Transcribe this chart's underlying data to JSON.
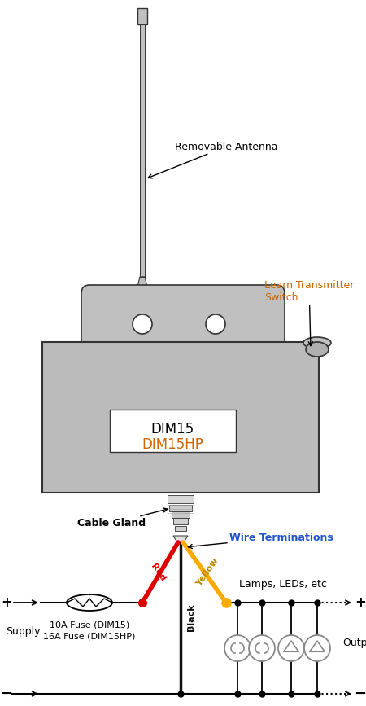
{
  "bg": "#ffffff",
  "gray_light": "#c0c0c0",
  "gray_med": "#b0b0b0",
  "gray_box": "#bbbbbb",
  "edge": "#555555",
  "edge_dark": "#333333",
  "red": "#dd0000",
  "black_wire": "#111111",
  "yellow": "#ffaa00",
  "blue_text": "#2255cc",
  "orange_text": "#cc6600",
  "label_antenna": "Removable Antenna",
  "label_learn": "Learn Transmitter\nSwitch",
  "label_cable": "Cable Gland",
  "label_wire": "Wire Terminations",
  "label_dim1": "DIM15",
  "label_dim2": "DIM15HP",
  "label_fuse": "10A Fuse (DIM15)\n16A Fuse (DIM15HP)",
  "label_supply": "Supply",
  "label_output": "Output",
  "label_lamps": "Lamps, LEDs, etc"
}
